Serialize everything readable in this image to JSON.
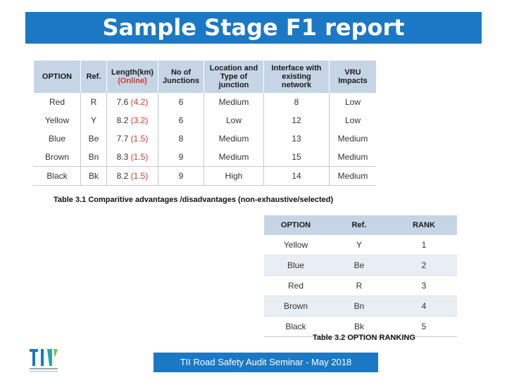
{
  "title": "Sample Stage F1 report",
  "table1": {
    "headers": {
      "option": "OPTION",
      "ref": "Ref.",
      "length_line1": "Length(km)",
      "length_line2": "(Online)",
      "junctions_line1": "No of",
      "junctions_line2": "Junctions",
      "location_line1": "Location and",
      "location_line2": "Type of",
      "location_line3": "junction",
      "interface_line1": "Interface with",
      "interface_line2": "existing",
      "interface_line3": "network",
      "vru_line1": "VRU",
      "vru_line2": "Impacts"
    },
    "rows": [
      {
        "option": "Red",
        "ref": "R",
        "length": "7.6",
        "online": "(4.2)",
        "junctions": "6",
        "location": "Medium",
        "interface": "8",
        "vru": "Low"
      },
      {
        "option": "Yellow",
        "ref": "Y",
        "length": "8.2",
        "online": "(3.2)",
        "junctions": "6",
        "location": "Low",
        "interface": "12",
        "vru": "Low"
      },
      {
        "option": "Blue",
        "ref": "Be",
        "length": "7.7",
        "online": "(1.5)",
        "junctions": "8",
        "location": "Medium",
        "interface": "13",
        "vru": "Medium"
      },
      {
        "option": "Brown",
        "ref": "Bn",
        "length": "8.3",
        "online": "(1.5)",
        "junctions": "9",
        "location": "Medium",
        "interface": "15",
        "vru": "Medium"
      },
      {
        "option": "Black",
        "ref": "Bk",
        "length": "8.2",
        "online": "(1.5)",
        "junctions": "9",
        "location": "High",
        "interface": "14",
        "vru": "Medium"
      }
    ],
    "caption": "Table 3.1 Comparitive advantages /disadvantages (non-exhaustive/selected)"
  },
  "table2": {
    "headers": {
      "option": "OPTION",
      "ref": "Ref.",
      "rank": "RANK"
    },
    "rows": [
      {
        "option": "Yellow",
        "ref": "Y",
        "rank": "1"
      },
      {
        "option": "Blue",
        "ref": "Be",
        "rank": "2"
      },
      {
        "option": "Red",
        "ref": "R",
        "rank": "3"
      },
      {
        "option": "Brown",
        "ref": "Bn",
        "rank": "4"
      },
      {
        "option": "Black",
        "ref": "Bk",
        "rank": "5"
      }
    ],
    "caption": "Table 3.2 OPTION RANKING"
  },
  "footer": "TII Road Safety Audit Seminar - May 2018",
  "logo": {
    "text": "TII",
    "icon": "tii-logo-icon"
  },
  "colors": {
    "accent": "#1b78c4",
    "header_fill": "#c5d5e6",
    "online_red": "#d03a2a"
  }
}
